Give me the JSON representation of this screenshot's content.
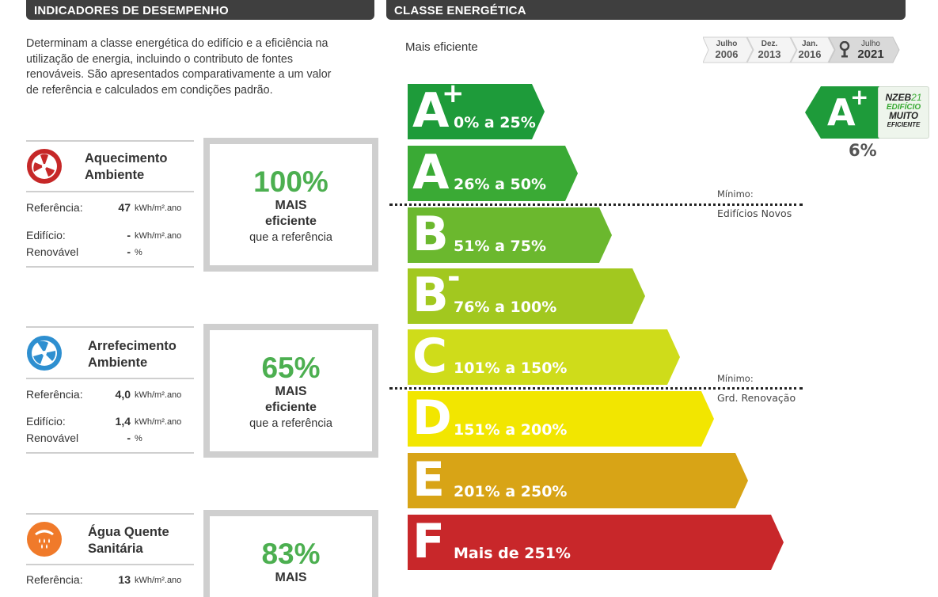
{
  "left_header": "INDICADORES DE DESEMPENHO",
  "right_header": "CLASSE ENERGÉTICA",
  "intro_lines": [
    "Determinam a classe energética do edifício e a eficiência na",
    "utilização de energia, incluindo o contributo de fontes",
    "renováveis. São apresentados comparativamente a um valor",
    "de referência e calculados em condições padrão."
  ],
  "indicators": [
    {
      "title_l1": "Aquecimento",
      "title_l2": "Ambiente",
      "ref_label": "Referência:",
      "ref_value": "47",
      "ref_unit": "kWh/m².ano",
      "ed_label": "Edifício:",
      "ed_value": "-",
      "ed_unit": "kWh/m².ano",
      "ren_label": "Renovável",
      "ren_value": "-",
      "ren_unit": "%",
      "percent": "100%",
      "mais": "MAIS",
      "eficiente": "eficiente",
      "que": "que a referência",
      "icon": "radiator-fan-icon",
      "color": "#c62828"
    },
    {
      "title_l1": "Arrefecimento",
      "title_l2": "Ambiente",
      "ref_label": "Referência:",
      "ref_value": "4,0",
      "ref_unit": "kWh/m².ano",
      "ed_label": "Edifício:",
      "ed_value": "1,4",
      "ed_unit": "kWh/m².ano",
      "ren_label": "Renovável",
      "ren_value": "-",
      "ren_unit": "%",
      "percent": "65%",
      "mais": "MAIS",
      "eficiente": "eficiente",
      "que": "que a referência",
      "icon": "cooling-fan-icon",
      "color": "#2e8fd0"
    },
    {
      "title_l1": "Água Quente",
      "title_l2": "Sanitária",
      "ref_label": "Referência:",
      "ref_value": "13",
      "ref_unit": "kWh/m².ano",
      "percent": "83%",
      "mais": "MAIS",
      "icon": "hot-water-icon",
      "color": "#f07a2a"
    }
  ],
  "mais_eficiente": "Mais eficiente",
  "timeline": [
    {
      "month": "Julho",
      "year": "2006"
    },
    {
      "month": "Dez.",
      "year": "2013"
    },
    {
      "month": "Jan.",
      "year": "2016"
    },
    {
      "month": "Julho",
      "year": "2021"
    }
  ],
  "classes": [
    {
      "letter": "A",
      "sup": "+",
      "range": "0% a 25%",
      "color": "#1e9b3a"
    },
    {
      "letter": "A",
      "sup": "",
      "range": "26% a 50%",
      "color": "#3aaa35"
    },
    {
      "letter": "B",
      "sup": "",
      "range": "51% a 75%",
      "color": "#6bb82e"
    },
    {
      "letter": "B",
      "sup": "-",
      "range": "76% a 100%",
      "color": "#a2c81f"
    },
    {
      "letter": "C",
      "sup": "",
      "range": "101% a 150%",
      "color": "#cfdc1a"
    },
    {
      "letter": "D",
      "sup": "",
      "range": "151% a 200%",
      "color": "#f2e600"
    },
    {
      "letter": "E",
      "sup": "",
      "range": "201% a 250%",
      "color": "#d8a416"
    },
    {
      "letter": "F",
      "sup": "",
      "range": "Mais de 251%",
      "color": "#c8272a"
    }
  ],
  "minimo_novos": {
    "label": "Mínimo:",
    "sub": "Edifícios Novos"
  },
  "minimo_renovacao": {
    "label": "Mínimo:",
    "sub": "Grd. Renovação"
  },
  "result": {
    "letter": "A",
    "sup": "+",
    "percent": "6%",
    "color": "#1e9b3a"
  },
  "nzeb": {
    "line1": "NZEB",
    "line1_num": "21",
    "line2": "EDIFÍCIO",
    "line3": "MUITO",
    "line4": "EFICIENTE"
  }
}
